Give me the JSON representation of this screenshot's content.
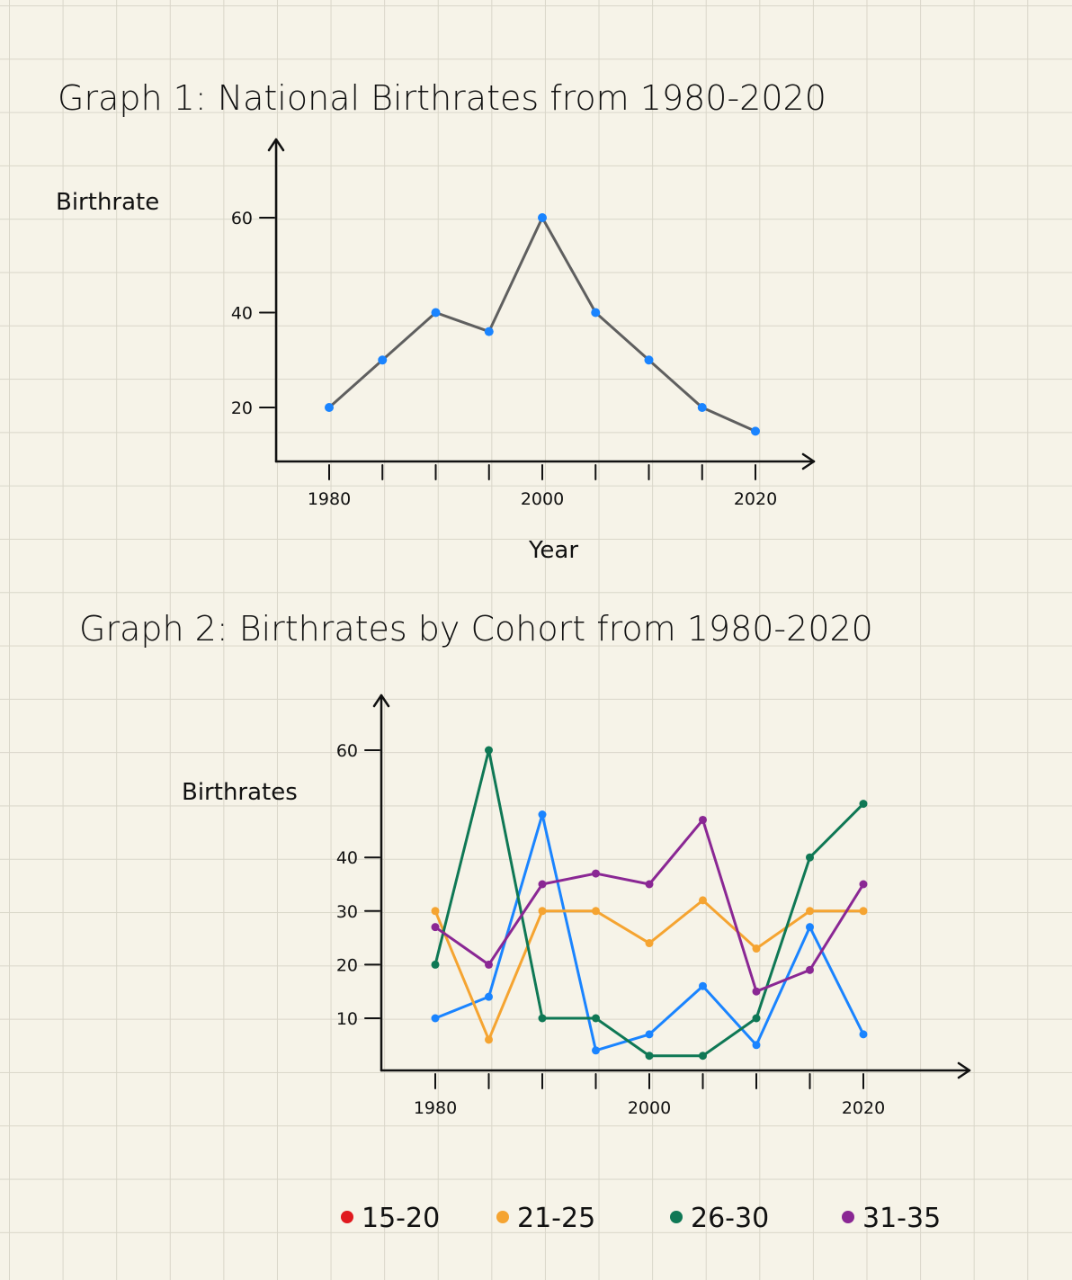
{
  "chart_data": [
    {
      "type": "line",
      "title": "Graph 1: National Birthrates from 1980-2020",
      "xlabel": "Year",
      "ylabel": "Birthrate",
      "x": [
        1980,
        1985,
        1990,
        1995,
        2000,
        2005,
        2010,
        2015,
        2020
      ],
      "x_tick_labels": [
        "1980",
        "2000",
        "2020"
      ],
      "y_ticks": [
        20,
        40,
        60
      ],
      "xlim": [
        1975,
        2025
      ],
      "ylim": [
        10,
        72
      ],
      "series": [
        {
          "values": [
            20,
            30,
            40,
            36,
            60,
            40,
            30,
            20,
            15
          ],
          "color": "#5f5f5f",
          "marker_color": "#1a84ff"
        }
      ],
      "grid": false
    },
    {
      "type": "line",
      "title": "Graph 2: Birthrates by Cohort from 1980-2020",
      "xlabel": "",
      "ylabel": "Birthrates",
      "x": [
        1980,
        1985,
        1990,
        1995,
        2000,
        2005,
        2010,
        2015,
        2020
      ],
      "x_tick_labels": [
        "1980",
        "2000",
        "2020"
      ],
      "y_ticks": [
        10,
        20,
        30,
        40,
        60
      ],
      "xlim": [
        1975,
        2030
      ],
      "ylim": [
        0,
        70
      ],
      "legend_position": "bottom",
      "series": [
        {
          "name": "15-20",
          "legend_color": "#e0191f",
          "color": "#1a84ff",
          "values": [
            10,
            14,
            48,
            4,
            7,
            16,
            5,
            27,
            7
          ]
        },
        {
          "name": "21-25",
          "color": "#f5a431",
          "values": [
            30,
            6,
            30,
            30,
            24,
            32,
            23,
            30,
            30
          ]
        },
        {
          "name": "26-30",
          "color": "#0f7855",
          "values": [
            20,
            60,
            10,
            10,
            3,
            3,
            10,
            40,
            50
          ]
        },
        {
          "name": "31-35",
          "color": "#8a2794",
          "values": [
            27,
            20,
            35,
            37,
            35,
            47,
            15,
            19,
            35
          ]
        }
      ],
      "grid": false
    }
  ]
}
